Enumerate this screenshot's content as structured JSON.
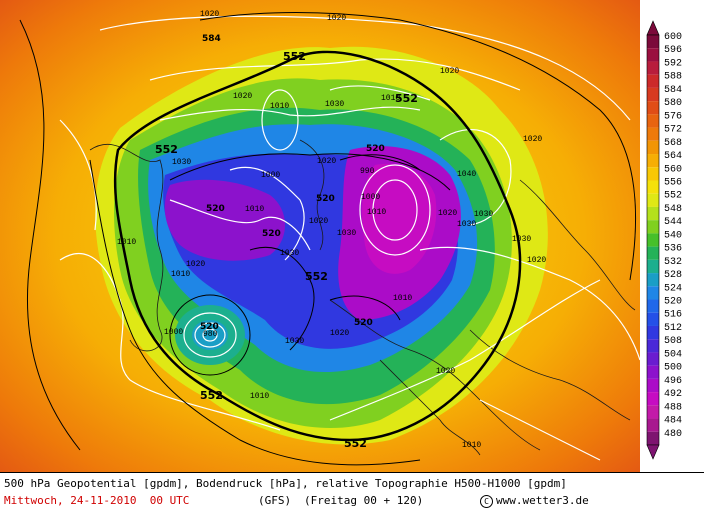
{
  "map": {
    "pressure_labels": [
      "1020",
      "1020",
      "1020",
      "1020",
      "1020",
      "1020",
      "1020",
      "1020",
      "1020",
      "1020",
      "1020",
      "1020",
      "1030",
      "1030",
      "1030",
      "1030",
      "1030",
      "1030",
      "1030",
      "1030",
      "1010",
      "1010",
      "1010",
      "1010",
      "1010",
      "1010",
      "1010",
      "1010",
      "1010",
      "1000",
      "1000",
      "1000",
      "1040",
      "990",
      "980"
    ],
    "geopotential_labels": [
      "584",
      "552",
      "552",
      "552",
      "552",
      "552",
      "552",
      "520",
      "520",
      "520",
      "520",
      "520",
      "520"
    ]
  },
  "legend": {
    "colorbar": [
      {
        "label": "600",
        "color": "#7b0a3a"
      },
      {
        "label": "596",
        "color": "#9a0f3f"
      },
      {
        "label": "592",
        "color": "#b81d3c"
      },
      {
        "label": "588",
        "color": "#cc2a2a"
      },
      {
        "label": "584",
        "color": "#d73a20"
      },
      {
        "label": "580",
        "color": "#e04d16"
      },
      {
        "label": "576",
        "color": "#e8640f"
      },
      {
        "label": "572",
        "color": "#ee7a0a"
      },
      {
        "label": "568",
        "color": "#f29505"
      },
      {
        "label": "564",
        "color": "#f6ae05"
      },
      {
        "label": "560",
        "color": "#f8c805"
      },
      {
        "label": "556",
        "color": "#f5e10a"
      },
      {
        "label": "552",
        "color": "#dfe815"
      },
      {
        "label": "548",
        "color": "#b4e01c"
      },
      {
        "label": "544",
        "color": "#80d020"
      },
      {
        "label": "540",
        "color": "#46c02a"
      },
      {
        "label": "536",
        "color": "#24b258"
      },
      {
        "label": "532",
        "color": "#1caf8e"
      },
      {
        "label": "528",
        "color": "#1a9ec6"
      },
      {
        "label": "524",
        "color": "#1f86e6"
      },
      {
        "label": "520",
        "color": "#2068ea"
      },
      {
        "label": "516",
        "color": "#2450e8"
      },
      {
        "label": "512",
        "color": "#3038e0"
      },
      {
        "label": "508",
        "color": "#4a28d8"
      },
      {
        "label": "504",
        "color": "#6a1cd0"
      },
      {
        "label": "500",
        "color": "#8c12cc"
      },
      {
        "label": "496",
        "color": "#ab0cc8"
      },
      {
        "label": "492",
        "color": "#c60cc2"
      },
      {
        "label": "488",
        "color": "#c31aa9"
      },
      {
        "label": "484",
        "color": "#a8188f"
      },
      {
        "label": "480",
        "color": "#7e1470"
      }
    ]
  },
  "footer": {
    "line1": "500 hPa Geopotential [gpdm], Bodendruck [hPa], relative Topographie H500-H1000 [gpdm]",
    "date": "Mittwoch, 24-11-2010  00 UTC",
    "model": "(GFS)",
    "forecast": "(Freitag 00 + 120)",
    "copyright": "www.wetter3.de",
    "copyright_symbol": "C"
  },
  "colors": {
    "accent_red": "#d00000",
    "land_outline": "#1a1a1a",
    "isobars": "#ffffff",
    "geopotential_lines": "#000000"
  }
}
